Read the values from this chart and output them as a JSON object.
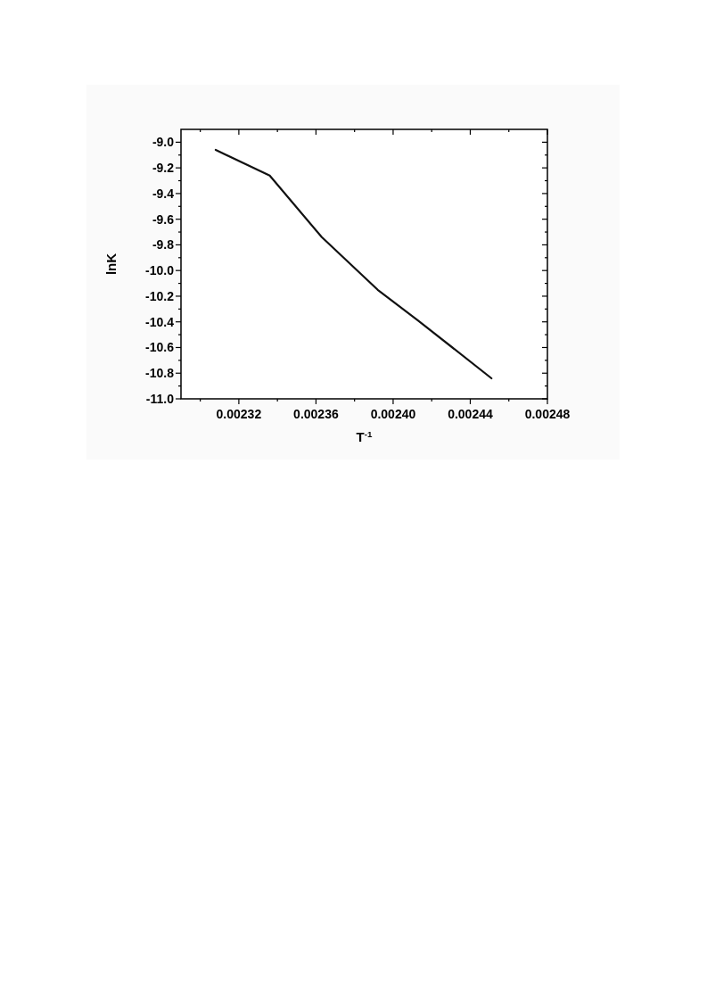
{
  "chart_data": {
    "type": "line",
    "xlabel": "T$^{-1}$",
    "ylabel": "lnK",
    "x": [
      0.002308,
      0.002336,
      0.002363,
      0.002392,
      0.002413,
      0.002451
    ],
    "series": [
      {
        "color": "#111111",
        "values": [
          -9.06,
          -9.26,
          -9.74,
          -10.15,
          -10.39,
          -10.84
        ]
      }
    ],
    "xlim": [
      0.00229,
      0.00248
    ],
    "xticks": [
      {
        "value": 0.0023,
        "label": null
      },
      {
        "value": 0.00232,
        "label": "0.00232"
      },
      {
        "value": 0.00234,
        "label": null
      },
      {
        "value": 0.00236,
        "label": "0.00236"
      },
      {
        "value": 0.00238,
        "label": null
      },
      {
        "value": 0.0024,
        "label": "0.00240"
      },
      {
        "value": 0.00242,
        "label": null
      },
      {
        "value": 0.00244,
        "label": "0.00244"
      },
      {
        "value": 0.00246,
        "label": null
      },
      {
        "value": 0.00248,
        "label": "0.00248"
      }
    ],
    "ylim": [
      -11.0,
      -8.9
    ],
    "yticks": [
      {
        "value": -11.0,
        "label": "-11.0"
      },
      {
        "value": -10.9,
        "label": null
      },
      {
        "value": -10.8,
        "label": "-10.8"
      },
      {
        "value": -10.7,
        "label": null
      },
      {
        "value": -10.6,
        "label": "-10.6"
      },
      {
        "value": -10.5,
        "label": null
      },
      {
        "value": -10.4,
        "label": "-10.4"
      },
      {
        "value": -10.3,
        "label": null
      },
      {
        "value": -10.2,
        "label": "-10.2"
      },
      {
        "value": -10.1,
        "label": null
      },
      {
        "value": -10.0,
        "label": "-10.0"
      },
      {
        "value": -9.9,
        "label": null
      },
      {
        "value": -9.8,
        "label": "-9.8"
      },
      {
        "value": -9.7,
        "label": null
      },
      {
        "value": -9.6,
        "label": "-9.6"
      },
      {
        "value": -9.5,
        "label": null
      },
      {
        "value": -9.4,
        "label": "-9.4"
      },
      {
        "value": -9.3,
        "label": null
      },
      {
        "value": -9.2,
        "label": "-9.2"
      },
      {
        "value": -9.1,
        "label": null
      },
      {
        "value": -9.0,
        "label": "-9.0"
      }
    ],
    "marker": "none",
    "line_style": "solid"
  }
}
